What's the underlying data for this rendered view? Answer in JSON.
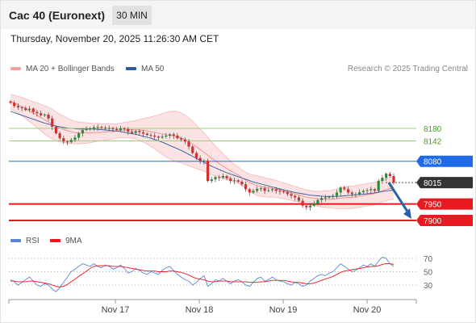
{
  "header": {
    "instrument": "Cac 40 (Euronext)",
    "timeframe": "30 MIN",
    "datetime": "Thursday, November 20, 2025 11:26:30 AM CET"
  },
  "legend": {
    "bollinger_label": "MA 20 + Bollinger Bands",
    "ma50_label": "MA 50",
    "credit": "Research © 2025 Trading Central"
  },
  "rsi_legend": {
    "rsi_label": "RSI",
    "ma_label": "9MA"
  },
  "colors": {
    "bollinger": "#f08a8a",
    "ma50": "#2d5aa0",
    "candle_up": "#2e8b3c",
    "candle_down": "#d32f2f",
    "support": "#e8191f",
    "resistance_blue": "#1f6ae6",
    "resistance_green": "#9bd07a",
    "arrow": "#2b5fa8",
    "rsi": "#5b86d8",
    "rsi_ma": "#e8191f"
  },
  "chart_data": [
    {
      "type": "candlestick",
      "title": "Cac 40 (Euronext)",
      "timeframe": "30 MIN",
      "x_labels": [
        "Nov 17",
        "Nov 18",
        "Nov 19",
        "Nov 20"
      ],
      "y_range": [
        7880,
        8300
      ],
      "levels": [
        {
          "value": 8180,
          "label": "8180",
          "role": "resistance",
          "color": "#9bd07a"
        },
        {
          "value": 8142,
          "label": "8142",
          "role": "resistance",
          "color": "#9bd07a"
        },
        {
          "value": 8080,
          "label": "8080",
          "role": "resistance",
          "color": "#1f6ae6"
        },
        {
          "value": 8015,
          "label": "8015",
          "role": "last-price",
          "color": "#333333"
        },
        {
          "value": 7950,
          "label": "7950",
          "role": "support",
          "color": "#e8191f"
        },
        {
          "value": 7900,
          "label": "7900",
          "role": "support",
          "color": "#e8191f"
        }
      ],
      "closes": [
        8258,
        8248,
        8244,
        8242,
        8236,
        8240,
        8230,
        8226,
        8220,
        8222,
        8210,
        8185,
        8165,
        8150,
        8140,
        8138,
        8145,
        8152,
        8165,
        8175,
        8178,
        8180,
        8183,
        8184,
        8182,
        8180,
        8181,
        8178,
        8175,
        8180,
        8178,
        8170,
        8166,
        8172,
        8168,
        8164,
        8160,
        8158,
        8155,
        8152,
        8155,
        8158,
        8162,
        8158,
        8150,
        8146,
        8140,
        8125,
        8105,
        8090,
        8080,
        8082,
        8020,
        8025,
        8032,
        8030,
        8035,
        8028,
        8020,
        8022,
        8018,
        8010,
        7995,
        7985,
        7990,
        7996,
        7998,
        7990,
        7992,
        7995,
        7990,
        7988,
        7986,
        7980,
        7975,
        7970,
        7960,
        7945,
        7940,
        7945,
        7952,
        7962,
        7968,
        7970,
        7972,
        7975,
        7985,
        8000,
        7995,
        7985,
        7980,
        7980,
        7986,
        7990,
        7992,
        7995,
        7990,
        8020,
        8030,
        8042,
        8035,
        8015
      ],
      "ma20": [
        8262,
        8257,
        8252,
        8246,
        8240,
        8233,
        8226,
        8220,
        8213,
        8206,
        8199,
        8193,
        8186,
        8181,
        8177,
        8173,
        8170,
        8167,
        8166,
        8166,
        8166,
        8166,
        8167,
        8168,
        8168,
        8169,
        8170,
        8171,
        8172,
        8174,
        8175,
        8176,
        8176,
        8176,
        8175,
        8174,
        8172,
        8170,
        8168,
        8165,
        8163,
        8161,
        8159,
        8157,
        8155,
        8151,
        8146,
        8139,
        8132,
        8124,
        8116,
        8108,
        8098,
        8089,
        8081,
        8073,
        8065,
        8058,
        8051,
        8044,
        8038,
        8030,
        8022,
        8015,
        8010,
        8006,
        8003,
        8001,
        7999,
        7998,
        7996,
        7993,
        7990,
        7987,
        7984,
        7981,
        7978,
        7974,
        7971,
        7969,
        7967,
        7966,
        7965,
        7965,
        7964,
        7965,
        7966,
        7968,
        7969,
        7970,
        7970,
        7972,
        7974,
        7976,
        7978,
        7980,
        7982,
        7986,
        7990,
        7994,
        7997,
        7998
      ],
      "bb_width": [
        22,
        24,
        26,
        28,
        30,
        32,
        35,
        38,
        40,
        43,
        45,
        45,
        44,
        42,
        40,
        38,
        36,
        34,
        33,
        32,
        31,
        30,
        28,
        27,
        26,
        25,
        24,
        23,
        22,
        22,
        23,
        24,
        26,
        28,
        32,
        36,
        40,
        45,
        50,
        56,
        62,
        68,
        72,
        75,
        76,
        76,
        75,
        73,
        70,
        66,
        62,
        58,
        54,
        50,
        46,
        42,
        38,
        34,
        30,
        27,
        25,
        24,
        25,
        26,
        28,
        30,
        30,
        29,
        28,
        27,
        26,
        25,
        24,
        24,
        23,
        23,
        22,
        22,
        22,
        22,
        22,
        23,
        24,
        25,
        26,
        28,
        30,
        32,
        33,
        34,
        34,
        34,
        34,
        34,
        34,
        34,
        34,
        34,
        34,
        34,
        34,
        34
      ],
      "ma50": [
        8232,
        8228,
        8224,
        8220,
        8216,
        8212,
        8208,
        8204,
        8200,
        8196,
        8193,
        8190,
        8187,
        8185,
        8183,
        8181,
        8180,
        8179,
        8178,
        8178,
        8178,
        8178,
        8178,
        8177,
        8176,
        8175,
        8174,
        8173,
        8172,
        8170,
        8168,
        8166,
        8164,
        8162,
        8159,
        8156,
        8153,
        8150,
        8146,
        8142,
        8138,
        8133,
        8128,
        8123,
        8118,
        8113,
        8107,
        8101,
        8095,
        8089,
        8083,
        8077,
        8071,
        8065,
        8060,
        8055,
        8050,
        8045,
        8041,
        8037,
        8033,
        8029,
        8025,
        8021,
        8017,
        8014,
        8011,
        8008,
        8005,
        8002,
        7999,
        7996,
        7993,
        7990,
        7988,
        7985,
        7983,
        7981,
        7979,
        7977,
        7976,
        7975,
        7974,
        7973,
        7973,
        7973,
        7973,
        7974,
        7975,
        7976,
        7977,
        7978,
        7979,
        7980,
        7981,
        7982,
        7984,
        7986,
        7988,
        7990,
        7991,
        7992
      ]
    },
    {
      "type": "line",
      "title": "RSI",
      "y_ticks": [
        70,
        50,
        30
      ],
      "series": [
        {
          "name": "RSI",
          "values": [
            38,
            35,
            30,
            34,
            38,
            42,
            36,
            30,
            28,
            32,
            30,
            24,
            20,
            26,
            34,
            42,
            50,
            54,
            58,
            62,
            60,
            58,
            62,
            58,
            56,
            60,
            58,
            54,
            56,
            60,
            55,
            48,
            50,
            55,
            52,
            48,
            46,
            50,
            48,
            46,
            52,
            56,
            58,
            52,
            46,
            42,
            38,
            36,
            30,
            34,
            40,
            44,
            28,
            32,
            38,
            36,
            40,
            36,
            32,
            36,
            38,
            35,
            30,
            28,
            34,
            40,
            42,
            36,
            38,
            42,
            38,
            36,
            35,
            32,
            30,
            34,
            32,
            28,
            30,
            36,
            40,
            44,
            46,
            44,
            48,
            50,
            56,
            62,
            58,
            54,
            50,
            52,
            56,
            60,
            58,
            62,
            58,
            66,
            72,
            70,
            62,
            58
          ]
        },
        {
          "name": "9MA",
          "values": [
            36,
            36,
            35,
            35,
            35,
            36,
            36,
            35,
            34,
            33,
            32,
            30,
            28,
            27,
            28,
            31,
            35,
            39,
            43,
            47,
            51,
            55,
            58,
            59,
            59,
            59,
            59,
            58,
            58,
            58,
            57,
            56,
            55,
            54,
            53,
            52,
            51,
            51,
            51,
            50,
            50,
            50,
            51,
            51,
            50,
            49,
            47,
            45,
            42,
            40,
            39,
            38,
            36,
            35,
            35,
            36,
            36,
            36,
            35,
            35,
            35,
            35,
            35,
            34,
            34,
            34,
            35,
            35,
            36,
            37,
            37,
            37,
            37,
            36,
            35,
            34,
            34,
            33,
            32,
            32,
            33,
            35,
            37,
            39,
            41,
            43,
            46,
            49,
            51,
            52,
            53,
            54,
            55,
            56,
            57,
            58,
            58,
            59,
            61,
            62,
            62,
            61
          ]
        }
      ]
    }
  ]
}
